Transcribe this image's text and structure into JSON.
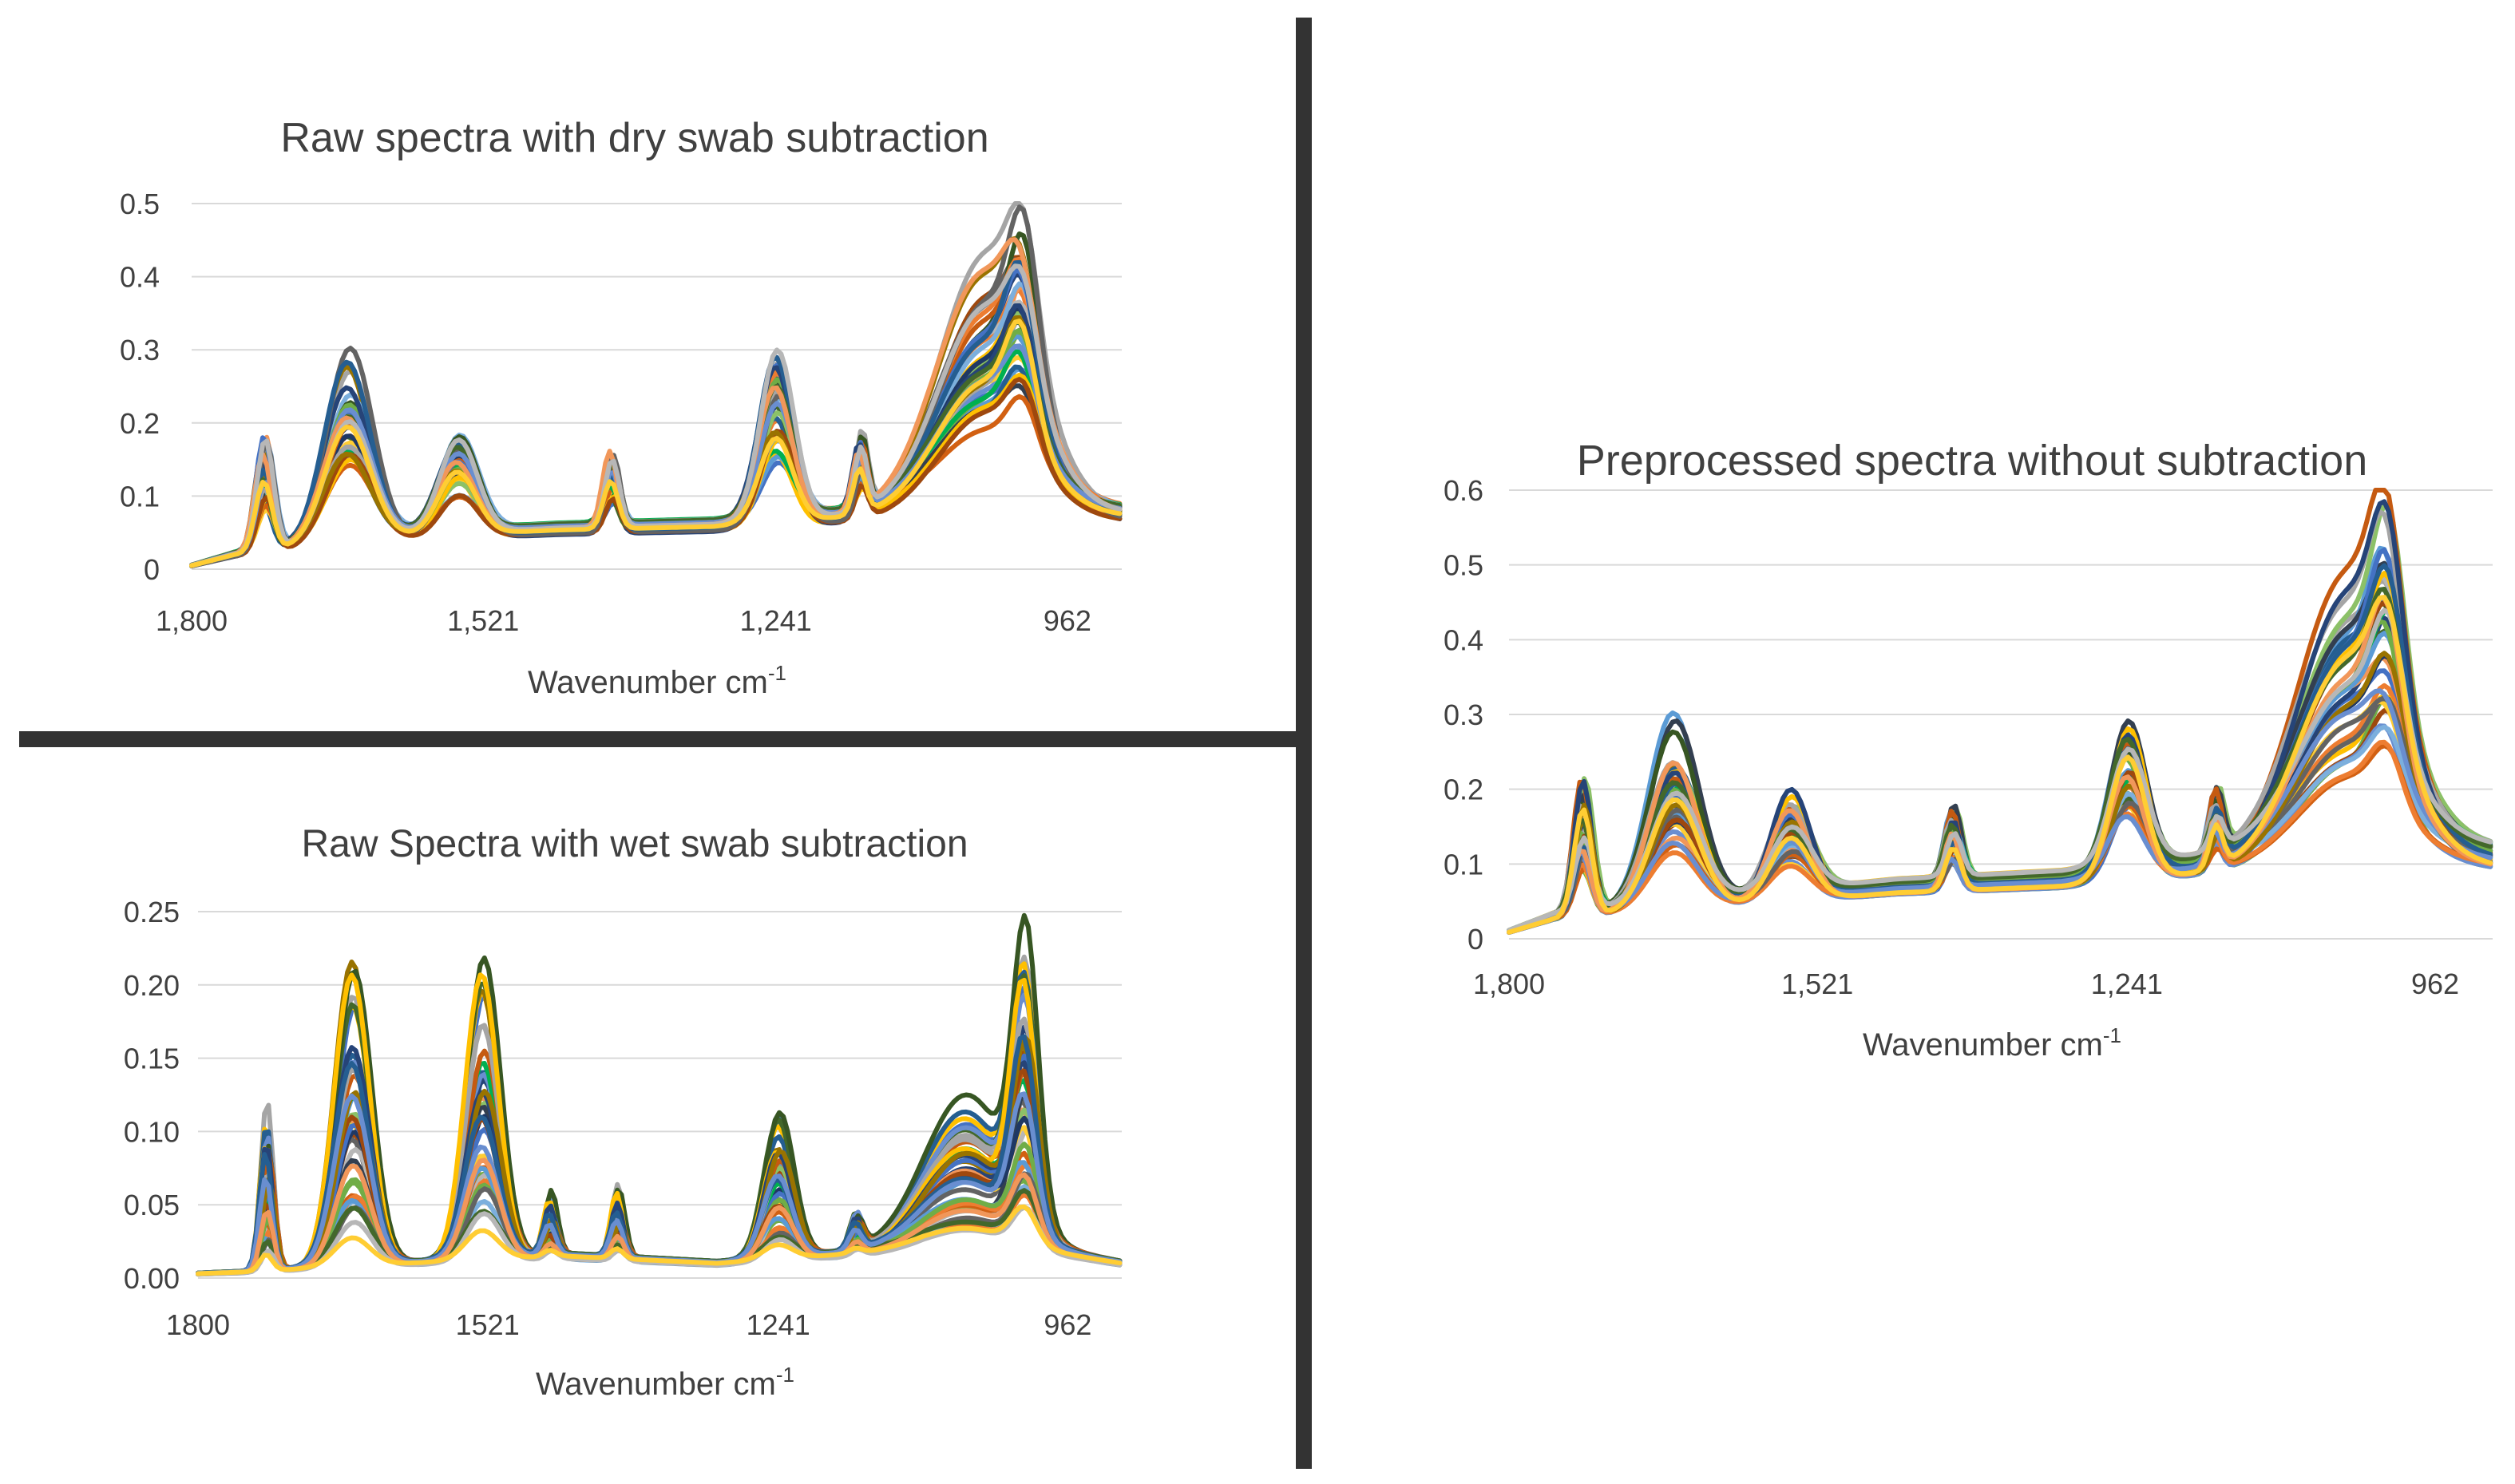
{
  "chart_data": [
    {
      "id": "dry",
      "type": "line",
      "title": "Raw spectra with dry swab subtraction",
      "xlabel": "Wavenumber cm",
      "xlabel_sup": "-1",
      "ylabel": "",
      "xlim": [
        1800,
        910
      ],
      "ylim": [
        0,
        0.5
      ],
      "yticks": [
        "0",
        "0.1",
        "0.2",
        "0.3",
        "0.4",
        "0.5"
      ],
      "xticks": [
        {
          "value": 1800,
          "label": "1,800"
        },
        {
          "value": 1521,
          "label": "1,521"
        },
        {
          "value": 1241,
          "label": "1,241"
        },
        {
          "value": 962,
          "label": "962"
        }
      ],
      "base_profile": {
        "baseline": [
          [
            1800,
            0.005
          ],
          [
            1760,
            0.02
          ],
          [
            1600,
            0.045
          ],
          [
            1450,
            0.055
          ],
          [
            1300,
            0.06
          ],
          [
            1100,
            0.08
          ],
          [
            1000,
            0.08
          ],
          [
            910,
            0.075
          ]
        ],
        "peaks": [
          {
            "center": 1730,
            "height": 0.11,
            "width": 8
          },
          {
            "center": 1650,
            "height": 0.17,
            "width": 22
          },
          {
            "center": 1545,
            "height": 0.1,
            "width": 18
          },
          {
            "center": 1398,
            "height": 0.07,
            "width": 7
          },
          {
            "center": 1240,
            "height": 0.16,
            "width": 16
          },
          {
            "center": 1160,
            "height": 0.07,
            "width": 6
          },
          {
            "center": 1040,
            "height": 0.22,
            "width": 45
          },
          {
            "center": 1005,
            "height": 0.13,
            "width": 14
          }
        ]
      },
      "series_count": 40,
      "series_scale_range": [
        0.55,
        1.35
      ]
    },
    {
      "id": "wet",
      "type": "line",
      "title": "Raw Spectra with wet swab subtraction",
      "xlabel": "Wavenumber cm",
      "xlabel_sup": "-1",
      "ylabel": "",
      "xlim": [
        1800,
        910
      ],
      "ylim": [
        0,
        0.25
      ],
      "yticks": [
        "0.00",
        "0.05",
        "0.10",
        "0.15",
        "0.20",
        "0.25"
      ],
      "xticks": [
        {
          "value": 1800,
          "label": "1800"
        },
        {
          "value": 1521,
          "label": "1521"
        },
        {
          "value": 1241,
          "label": "1241"
        },
        {
          "value": 962,
          "label": "962"
        }
      ],
      "base_profile": {
        "baseline": [
          [
            1800,
            0.003
          ],
          [
            1760,
            0.004
          ],
          [
            1600,
            0.01
          ],
          [
            1450,
            0.015
          ],
          [
            1300,
            0.01
          ],
          [
            1100,
            0.02
          ],
          [
            1000,
            0.02
          ],
          [
            910,
            0.01
          ]
        ],
        "peaks": [
          {
            "center": 1733,
            "height": 0.08,
            "width": 6
          },
          {
            "center": 1650,
            "height": 0.15,
            "width": 17
          },
          {
            "center": 1525,
            "height": 0.14,
            "width": 16
          },
          {
            "center": 1460,
            "height": 0.03,
            "width": 6
          },
          {
            "center": 1395,
            "height": 0.035,
            "width": 6
          },
          {
            "center": 1240,
            "height": 0.07,
            "width": 14
          },
          {
            "center": 1165,
            "height": 0.02,
            "width": 6
          },
          {
            "center": 1060,
            "height": 0.07,
            "width": 40
          },
          {
            "center": 1003,
            "height": 0.13,
            "width": 12
          }
        ]
      },
      "series_count": 40,
      "series_scale_range": [
        0.15,
        1.25
      ]
    },
    {
      "id": "pre",
      "type": "line",
      "title": "Preprocessed spectra without subtraction",
      "xlabel": "Wavenumber cm",
      "xlabel_sup": "-1",
      "ylabel": "",
      "xlim": [
        1800,
        910
      ],
      "ylim": [
        0,
        0.6
      ],
      "yticks": [
        "0",
        "0.1",
        "0.2",
        "0.3",
        "0.4",
        "0.5",
        "0.6"
      ],
      "xticks": [
        {
          "value": 1800,
          "label": "1,800"
        },
        {
          "value": 1521,
          "label": "1,521"
        },
        {
          "value": 1241,
          "label": "1,241"
        },
        {
          "value": 962,
          "label": "962"
        }
      ],
      "base_profile": {
        "baseline": [
          [
            1800,
            0.01
          ],
          [
            1760,
            0.03
          ],
          [
            1600,
            0.05
          ],
          [
            1450,
            0.07
          ],
          [
            1300,
            0.08
          ],
          [
            1100,
            0.11
          ],
          [
            1000,
            0.12
          ],
          [
            910,
            0.11
          ]
        ],
        "peaks": [
          {
            "center": 1733,
            "height": 0.12,
            "width": 8
          },
          {
            "center": 1650,
            "height": 0.17,
            "width": 22
          },
          {
            "center": 1545,
            "height": 0.1,
            "width": 18
          },
          {
            "center": 1398,
            "height": 0.07,
            "width": 7
          },
          {
            "center": 1240,
            "height": 0.16,
            "width": 16
          },
          {
            "center": 1160,
            "height": 0.06,
            "width": 6
          },
          {
            "center": 1040,
            "height": 0.25,
            "width": 45
          },
          {
            "center": 1005,
            "height": 0.15,
            "width": 14
          }
        ]
      },
      "series_count": 40,
      "series_scale_range": [
        0.55,
        1.35
      ]
    }
  ],
  "palette": [
    "#4472c4",
    "#ed7d31",
    "#a5a5a5",
    "#ffc000",
    "#5b9bd5",
    "#70ad47",
    "#264478",
    "#9e480e",
    "#636363",
    "#997300",
    "#255e91",
    "#43682b",
    "#698ed0",
    "#f1975a",
    "#b7b7b7",
    "#ffcd33",
    "#7cafdd",
    "#8cc168",
    "#333f50",
    "#d26012",
    "#1f3864",
    "#00b050",
    "#375623",
    "#c55a11"
  ]
}
